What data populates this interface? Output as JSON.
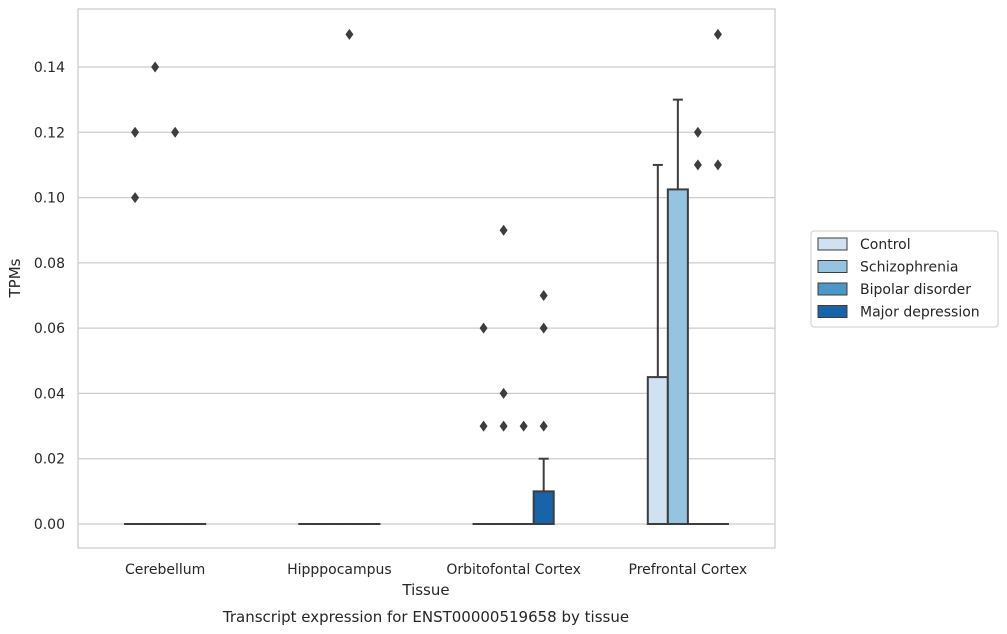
{
  "chart_data": {
    "type": "box",
    "xlabel": "Tissue",
    "ylabel": "TPMs",
    "caption": "Transcript expression for ENST00000519658 by tissue",
    "ylim": [
      -0.007,
      0.157
    ],
    "yticks": [
      0.0,
      0.02,
      0.04,
      0.06,
      0.08,
      0.1,
      0.12,
      0.14
    ],
    "ytick_labels": [
      "0.00",
      "0.02",
      "0.04",
      "0.06",
      "0.08",
      "0.10",
      "0.12",
      "0.14"
    ],
    "grid": "horizontal",
    "legend_position": "right",
    "categories": [
      "Cerebellum",
      "Hipppocampus",
      "Orbitofontal Cortex",
      "Prefrontal Cortex"
    ],
    "series": [
      {
        "name": "Control",
        "color": "#d0e1f2",
        "boxes": [
          {
            "q1": 0,
            "median": 0,
            "q3": 0,
            "whisker_low": 0,
            "whisker_high": 0,
            "outliers": [
              0.12,
              0.1
            ]
          },
          {
            "q1": 0,
            "median": 0,
            "q3": 0,
            "whisker_low": 0,
            "whisker_high": 0,
            "outliers": []
          },
          {
            "q1": 0,
            "median": 0,
            "q3": 0,
            "whisker_low": 0,
            "whisker_high": 0,
            "outliers": [
              0.06,
              0.03
            ]
          },
          {
            "q1": 0,
            "median": 0,
            "q3": 0.045,
            "whisker_low": 0,
            "whisker_high": 0.11,
            "outliers": []
          }
        ]
      },
      {
        "name": "Schizophrenia",
        "color": "#94c4df",
        "boxes": [
          {
            "q1": 0,
            "median": 0,
            "q3": 0,
            "whisker_low": 0,
            "whisker_high": 0,
            "outliers": [
              0.14
            ]
          },
          {
            "q1": 0,
            "median": 0,
            "q3": 0,
            "whisker_low": 0,
            "whisker_high": 0,
            "outliers": []
          },
          {
            "q1": 0,
            "median": 0,
            "q3": 0,
            "whisker_low": 0,
            "whisker_high": 0,
            "outliers": [
              0.09,
              0.04,
              0.03
            ]
          },
          {
            "q1": 0,
            "median": 0,
            "q3": 0.1025,
            "whisker_low": 0,
            "whisker_high": 0.13,
            "outliers": []
          }
        ]
      },
      {
        "name": "Bipolar disorder",
        "color": "#4a98c9",
        "boxes": [
          {
            "q1": 0,
            "median": 0,
            "q3": 0,
            "whisker_low": 0,
            "whisker_high": 0,
            "outliers": [
              0.12
            ]
          },
          {
            "q1": 0,
            "median": 0,
            "q3": 0,
            "whisker_low": 0,
            "whisker_high": 0,
            "outliers": [
              0.15
            ]
          },
          {
            "q1": 0,
            "median": 0,
            "q3": 0,
            "whisker_low": 0,
            "whisker_high": 0,
            "outliers": [
              0.03
            ]
          },
          {
            "q1": 0,
            "median": 0,
            "q3": 0,
            "whisker_low": 0,
            "whisker_high": 0,
            "outliers": [
              0.12,
              0.11
            ]
          }
        ]
      },
      {
        "name": "Major depression",
        "color": "#1764ab",
        "boxes": [
          {
            "q1": 0,
            "median": 0,
            "q3": 0,
            "whisker_low": 0,
            "whisker_high": 0,
            "outliers": []
          },
          {
            "q1": 0,
            "median": 0,
            "q3": 0,
            "whisker_low": 0,
            "whisker_high": 0,
            "outliers": []
          },
          {
            "q1": 0,
            "median": 0,
            "q3": 0.01,
            "whisker_low": 0,
            "whisker_high": 0.02,
            "outliers": [
              0.07,
              0.06,
              0.03
            ]
          },
          {
            "q1": 0,
            "median": 0,
            "q3": 0,
            "whisker_low": 0,
            "whisker_high": 0,
            "outliers": [
              0.15,
              0.11
            ]
          }
        ]
      }
    ]
  }
}
